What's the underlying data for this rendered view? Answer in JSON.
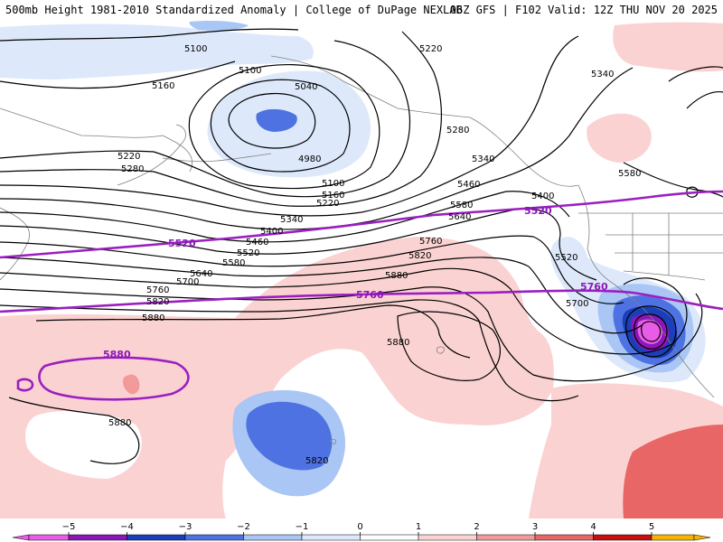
{
  "header": {
    "left_title": "500mb Height 1981-2010 Standardized Anomaly | College of DuPage NEXLAB",
    "right_title": "06Z GFS | F102 Valid: 12Z THU NOV 20 2025"
  },
  "map": {
    "black_contour_labels": [
      "5100",
      "5100",
      "5040",
      "4980",
      "5160",
      "5220",
      "5280",
      "5100",
      "5160",
      "5220",
      "5340",
      "5400",
      "5460",
      "5520",
      "5580",
      "5640",
      "5700",
      "5760",
      "5820",
      "5880",
      "5220",
      "5340",
      "5280",
      "5340",
      "5460",
      "5580",
      "5640",
      "5400",
      "5580",
      "5520",
      "5700",
      "5760",
      "5820",
      "5880",
      "5880",
      "5880",
      "5820"
    ],
    "purple_contour_labels": [
      "5520",
      "5520",
      "5760",
      "5760",
      "5880"
    ]
  },
  "legend": {
    "ticks": [
      "−5",
      "−4",
      "−3",
      "−2",
      "−1",
      "0",
      "1",
      "2",
      "3",
      "4",
      "5"
    ],
    "colors": {
      "m5": "#e85ce8",
      "m4": "#8a17b8",
      "m3": "#1a3fb8",
      "m2": "#4f72e2",
      "m1": "#a9c6f5",
      "m0": "#dde9fb",
      "p0": "#ffffff",
      "p1": "#fbd2d2",
      "p2": "#f29a9a",
      "p3": "#e86666",
      "p4": "#c80f0f",
      "p5": "#f5b400"
    }
  },
  "colors": {
    "neg_light": "#dde9fb",
    "neg_1": "#a9c6f5",
    "neg_2": "#4f72e2",
    "neg_3": "#1a3fb8",
    "neg_4": "#8a17b8",
    "neg_5": "#e85ce8",
    "pos_1": "#fbd2d2",
    "pos_2": "#f29a9a",
    "pos_3": "#e86666",
    "contour": "#000000",
    "climo": "#9b1fc0",
    "coast": "#808080"
  }
}
